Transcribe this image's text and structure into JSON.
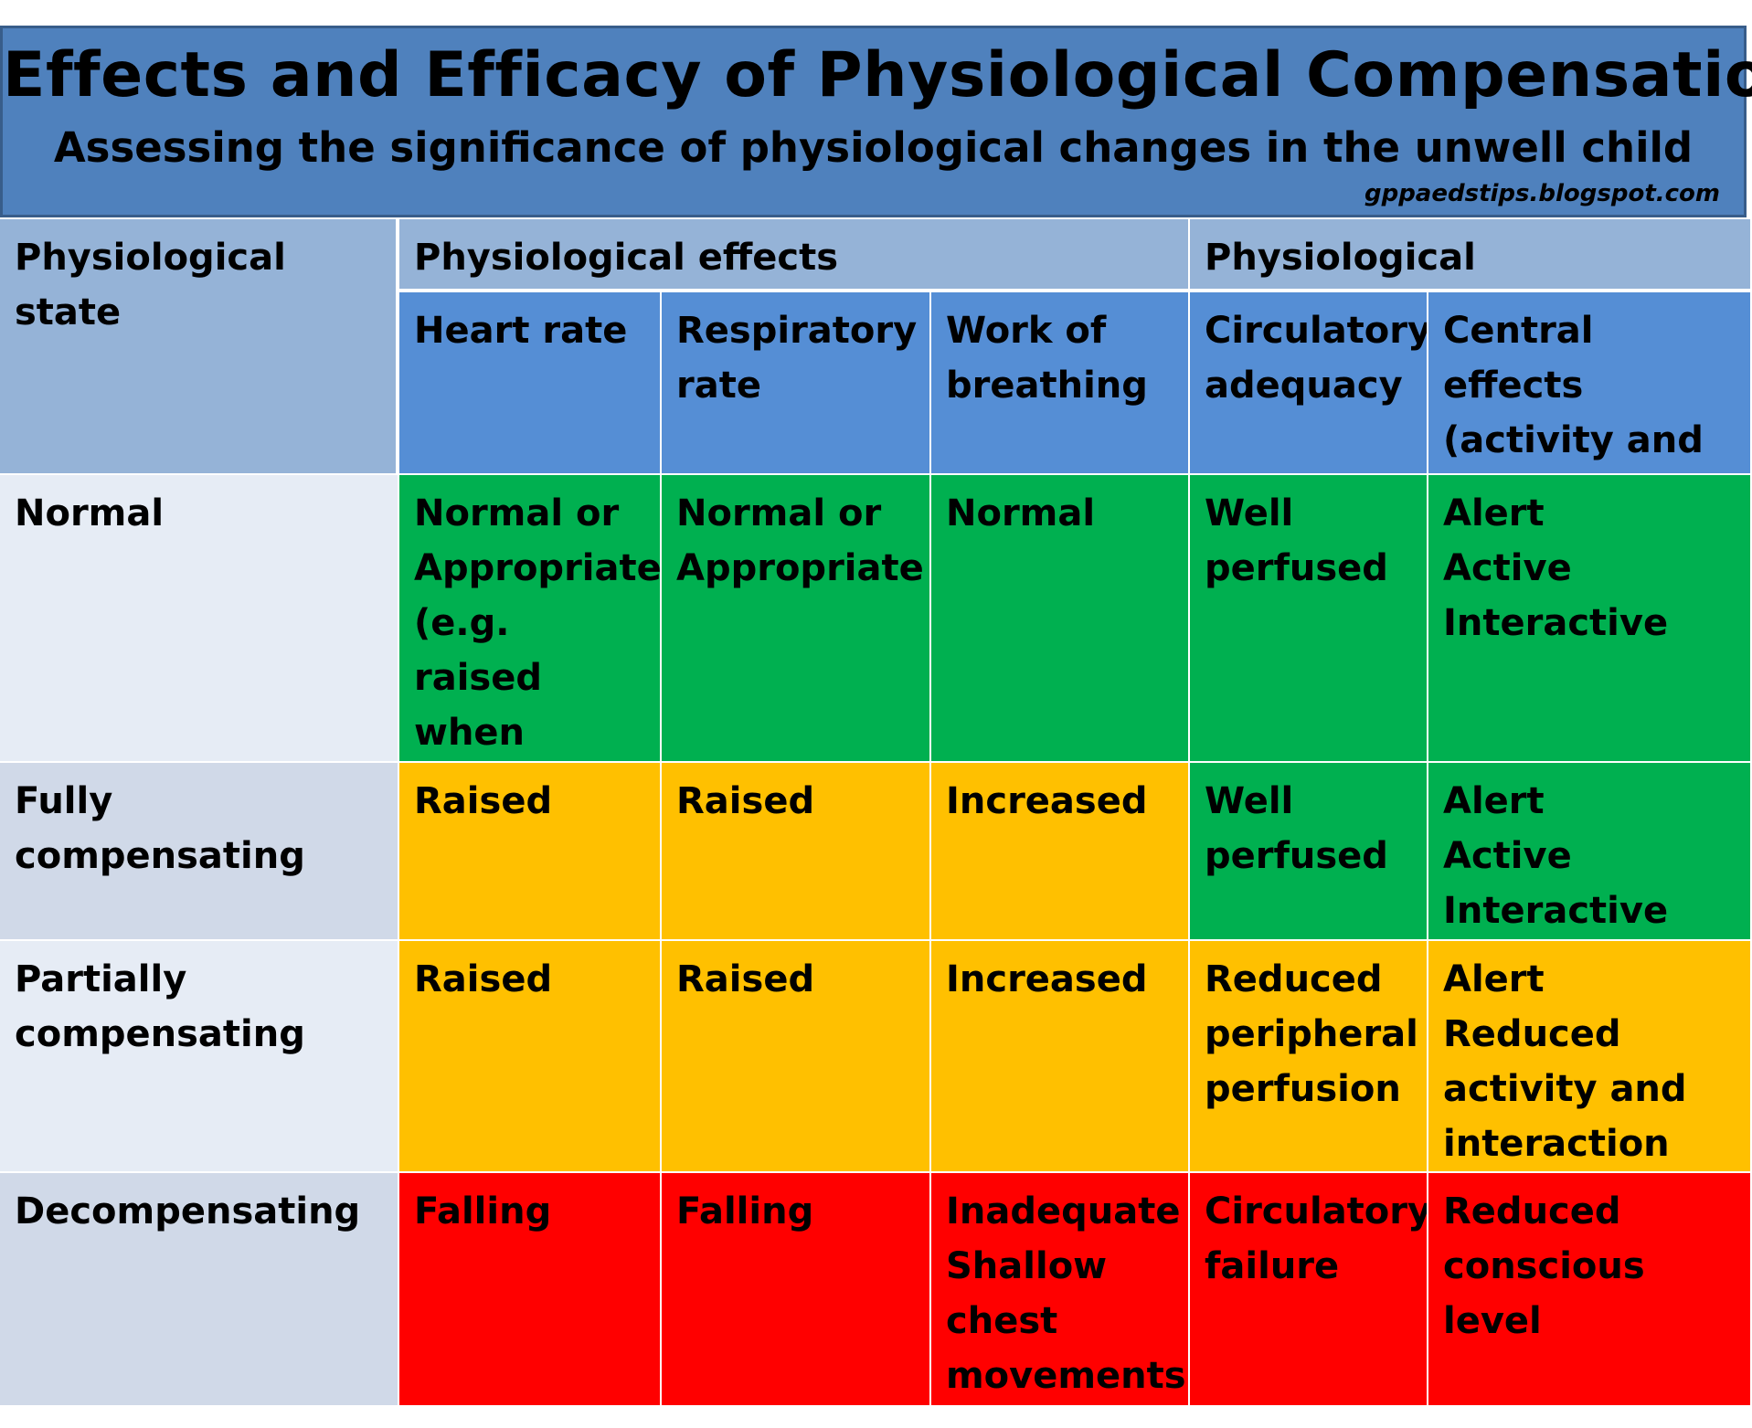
{
  "header": {
    "title": "Effects and Efficacy of Physiological Compensation",
    "subtitle": "Assessing the significance of physiological changes in the unwell child",
    "source": "gppaedstips.blogspot.com"
  },
  "table": {
    "group_headers": {
      "state": "Physiological state",
      "effects": "Physiological effects",
      "effectiveness": "Physiological effectiveness"
    },
    "columns": [
      "Heart rate",
      "Respiratory rate",
      "Work of breathing",
      "Circulatory adequacy",
      "Central effects (activity and interaction)"
    ],
    "rows": [
      {
        "state": "Normal",
        "cells": [
          "Normal or Appropriate (e.g. raised when upset)",
          "Normal or Appropriate",
          "Normal",
          "Well perfused",
          "Alert\nActive\nInteractive"
        ],
        "colors": [
          "green",
          "green",
          "green",
          "green",
          "green"
        ]
      },
      {
        "state": "Fully compensating",
        "cells": [
          "Raised",
          "Raised",
          "Increased",
          "Well perfused",
          "Alert\nActive\nInteractive"
        ],
        "colors": [
          "amber",
          "amber",
          "amber",
          "green",
          "green"
        ]
      },
      {
        "state": "Partially compensating",
        "cells": [
          "Raised",
          "Raised",
          "Increased",
          "Reduced peripheral perfusion",
          "Alert\nReduced activity and interaction"
        ],
        "colors": [
          "amber",
          "amber",
          "amber",
          "amber",
          "amber"
        ]
      },
      {
        "state": "Decompensating",
        "cells": [
          "Falling",
          "Falling",
          "Inadequate\nShallow chest movements",
          "Circulatory failure",
          "Reduced conscious level"
        ],
        "colors": [
          "red",
          "red",
          "red",
          "red",
          "red"
        ]
      }
    ],
    "palette": {
      "green": "#00b050",
      "amber": "#ffc000",
      "red": "#ff0000",
      "header_dark": "#95b3d7",
      "header_blue": "#558ed5"
    }
  }
}
